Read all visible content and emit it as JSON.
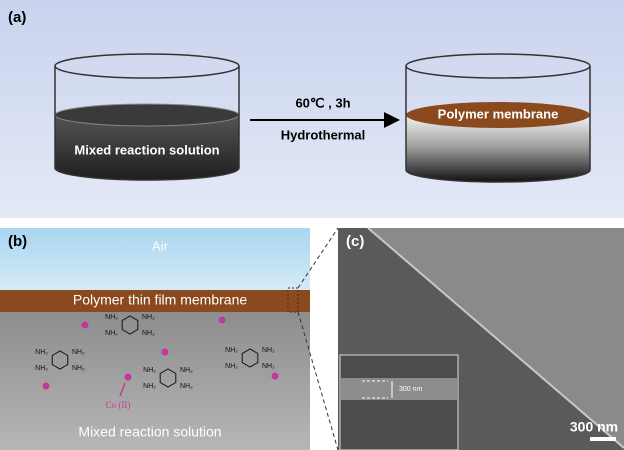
{
  "panel_a": {
    "label": "(a)",
    "left_beaker": "Mixed reaction solution",
    "right_beaker": "Polymer membrane",
    "condition": "60℃ , 3h",
    "method": "Hydrothermal"
  },
  "panel_b": {
    "label": "(b)",
    "air": "Air",
    "membrane": "Polymer thin film membrane",
    "solution": "Mixed reaction solution",
    "ion": "Co (II)",
    "amine": "NH₂"
  },
  "panel_c": {
    "label": "(c)",
    "inset_scale": "300 nm",
    "scale_bar": "300 nm"
  }
}
